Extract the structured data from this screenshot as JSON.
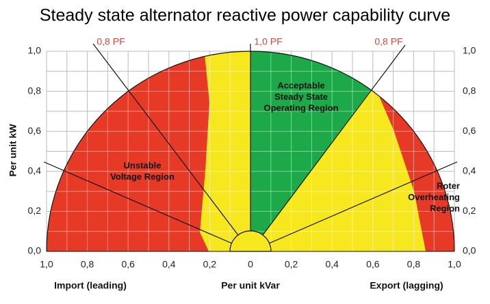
{
  "title": "Steady state alternator reactive power capability curve",
  "y_axis_label": "Per unit kW",
  "x_axis_label": "Per unit kVar",
  "x_left_label": "Import (leading)",
  "x_right_label": "Export (lagging)",
  "y_ticks": [
    "0,0",
    "0,2",
    "0,4",
    "0,6",
    "0,8",
    "1,0"
  ],
  "x_ticks": [
    "1,0",
    "0,8",
    "0,6",
    "0,4",
    "0,2",
    "0",
    "0,2",
    "0,4",
    "0,6",
    "0,8",
    "1,0"
  ],
  "pf_labels": [
    "0,8 PF",
    "1,0 PF",
    "0,8 PF"
  ],
  "regions": [
    {
      "lines": [
        "Acceptable",
        "Steady State",
        "Operating Region"
      ]
    },
    {
      "lines": [
        "Unstable",
        "Voltage Region"
      ]
    },
    {
      "lines": [
        "Roter",
        "Overheating",
        "Region"
      ]
    }
  ]
}
